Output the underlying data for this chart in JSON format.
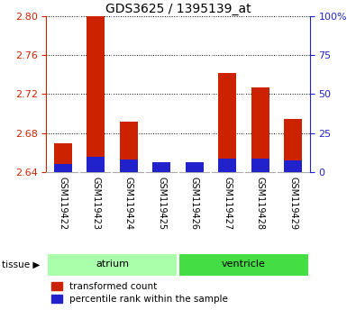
{
  "title": "GDS3625 / 1395139_at",
  "samples": [
    "GSM119422",
    "GSM119423",
    "GSM119424",
    "GSM119425",
    "GSM119426",
    "GSM119427",
    "GSM119428",
    "GSM119429"
  ],
  "red_values": [
    2.67,
    2.8,
    2.692,
    2.648,
    2.648,
    2.742,
    2.727,
    2.695
  ],
  "blue_pct": [
    5.5,
    10.0,
    8.0,
    6.5,
    6.5,
    9.0,
    8.5,
    7.5
  ],
  "y_min": 2.64,
  "y_max": 2.8,
  "y_ticks": [
    2.64,
    2.68,
    2.72,
    2.76,
    2.8
  ],
  "y2_ticks": [
    0,
    25,
    50,
    75,
    100
  ],
  "y2_labels": [
    "0",
    "25",
    "50",
    "75",
    "100%"
  ],
  "tissue_groups": [
    {
      "label": "atrium",
      "start": 0,
      "end": 3,
      "color": "#aaffaa"
    },
    {
      "label": "ventricle",
      "start": 4,
      "end": 7,
      "color": "#44dd44"
    }
  ],
  "red_color": "#cc2200",
  "blue_color": "#2222cc",
  "bar_width": 0.55,
  "background_color": "#ffffff",
  "tick_color_left": "#cc2200",
  "tick_color_right": "#2222cc",
  "sample_area_color": "#cccccc",
  "legend_labels": [
    "transformed count",
    "percentile rank within the sample"
  ]
}
